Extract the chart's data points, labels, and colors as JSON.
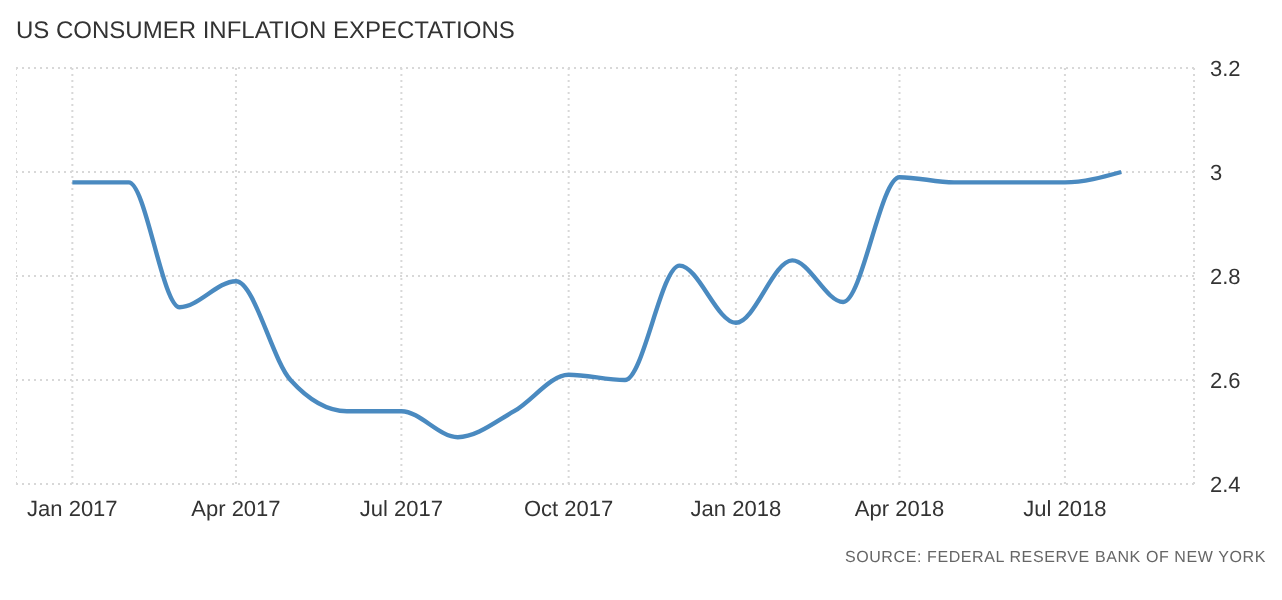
{
  "chart_data": {
    "type": "line",
    "title": "US CONSUMER INFLATION EXPECTATIONS",
    "x": [
      "2017-01",
      "2017-02",
      "2017-03",
      "2017-04",
      "2017-05",
      "2017-06",
      "2017-07",
      "2017-08",
      "2017-09",
      "2017-10",
      "2017-11",
      "2017-12",
      "2018-01",
      "2018-02",
      "2018-03",
      "2018-04",
      "2018-05",
      "2018-06",
      "2018-07",
      "2018-08"
    ],
    "series": [
      {
        "color": "#4a8ac0",
        "values": [
          2.98,
          2.98,
          2.74,
          2.79,
          2.6,
          2.54,
          2.54,
          2.49,
          2.54,
          2.61,
          2.6,
          2.82,
          2.71,
          2.83,
          2.75,
          2.99,
          2.98,
          2.98,
          2.98,
          3.0
        ]
      }
    ],
    "xlim": [
      "2016-12-01",
      "2018-09-10"
    ],
    "xticks": [
      {
        "value": "2017-01",
        "label": "Jan 2017"
      },
      {
        "value": "2017-04",
        "label": "Apr 2017"
      },
      {
        "value": "2017-07",
        "label": "Jul 2017"
      },
      {
        "value": "2017-10",
        "label": "Oct 2017"
      },
      {
        "value": "2018-01",
        "label": "Jan 2018"
      },
      {
        "value": "2018-04",
        "label": "Apr 2018"
      },
      {
        "value": "2018-07",
        "label": "Jul 2018"
      }
    ],
    "ylim": [
      2.4,
      3.2
    ],
    "yticks": [
      2.4,
      2.6,
      2.8,
      3,
      3.2
    ],
    "grid": true,
    "legend": false,
    "marker": "none",
    "line_style": "solid",
    "annotations": [
      "SOURCE: FEDERAL RESERVE BANK OF NEW YORK"
    ]
  }
}
